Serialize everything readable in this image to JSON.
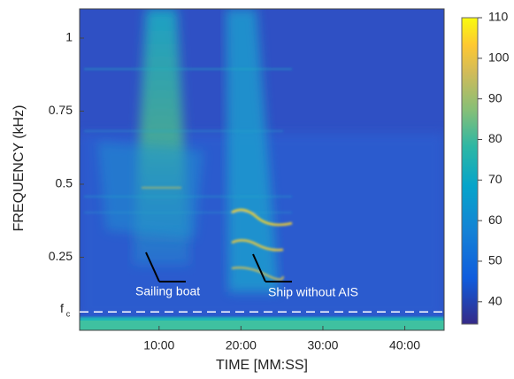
{
  "chart_data": {
    "type": "heatmap",
    "x_label": "TIME [MM:SS]",
    "y_label": "FREQUENCY (kHz)",
    "xlim": [
      0.3,
      44.8
    ],
    "xticks": [
      {
        "value": 10,
        "label": "10:00"
      },
      {
        "value": 20,
        "label": "20:00"
      },
      {
        "value": 30,
        "label": "30:00"
      },
      {
        "value": 40,
        "label": "40:00"
      }
    ],
    "ylim": [
      0,
      1.1
    ],
    "yticks": [
      0.25,
      0.5,
      0.75,
      1
    ],
    "colorbar": {
      "lim": [
        34.5,
        110
      ],
      "ticks": [
        40,
        50,
        60,
        70,
        80,
        90,
        100,
        110
      ]
    },
    "cutoff": {
      "value": 0.063,
      "label": "f",
      "label_sub": "c"
    },
    "annotations": [
      "Sailing boat",
      "Ship without AIS"
    ]
  }
}
